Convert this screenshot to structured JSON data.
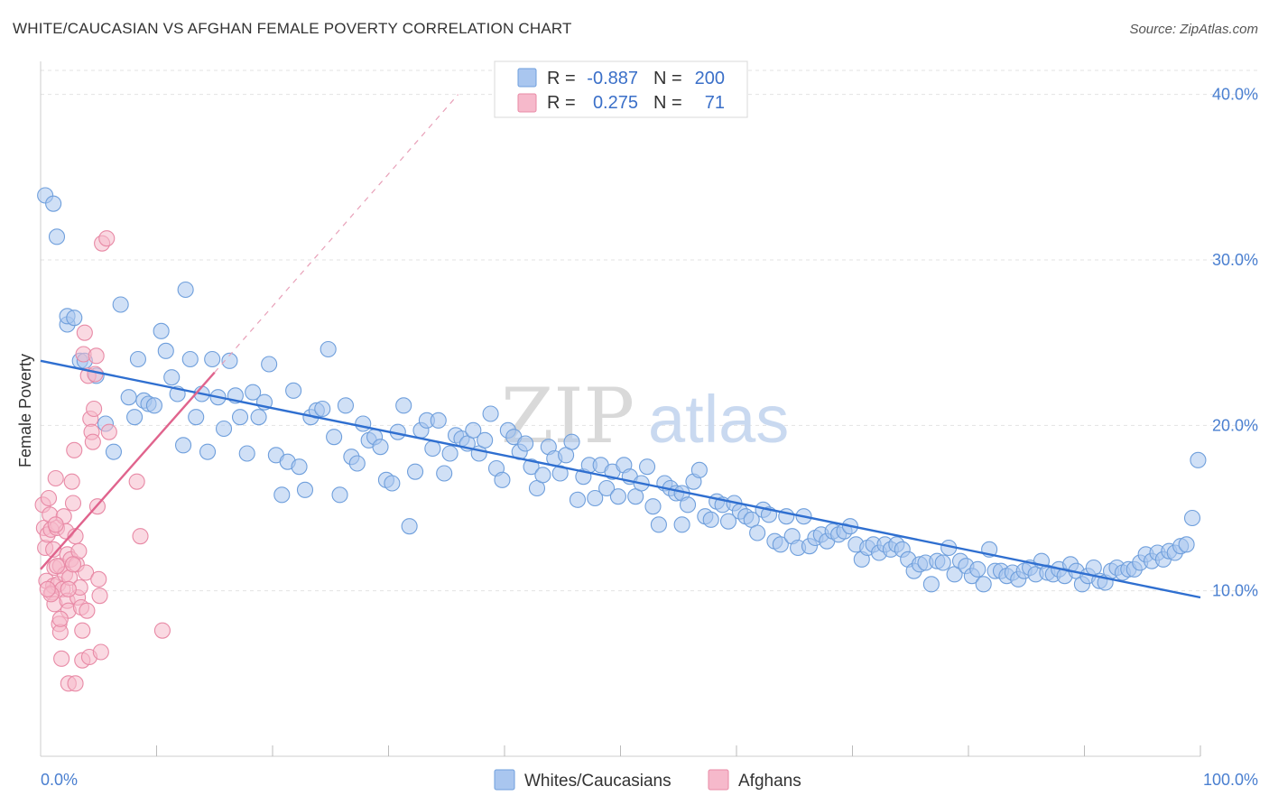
{
  "title": "WHITE/CAUCASIAN VS AFGHAN FEMALE POVERTY CORRELATION CHART",
  "source": "Source: ZipAtlas.com",
  "watermark": {
    "zip": "ZIP",
    "atlas": "atlas"
  },
  "legend": {
    "r_label": "R =",
    "n_label": "N =",
    "rows": [
      {
        "r": "-0.887",
        "n": "200",
        "color": "#a9c6ef",
        "edge": "#6f9fdc"
      },
      {
        "r": "0.275",
        "n": "71",
        "color": "#f6b9cb",
        "edge": "#e88aa6"
      }
    ]
  },
  "chart_data": {
    "type": "scatter",
    "title": "WHITE/CAUCASIAN VS AFGHAN FEMALE POVERTY CORRELATION CHART",
    "xlabel": "",
    "ylabel": "Female Poverty",
    "xlim": [
      0,
      100
    ],
    "ylim": [
      0,
      42
    ],
    "x_tick_labels": [
      "0.0%",
      "100.0%"
    ],
    "y_ticks": [
      10,
      20,
      30,
      40
    ],
    "y_tick_labels": [
      "10.0%",
      "20.0%",
      "30.0%",
      "40.0%"
    ],
    "grid": true,
    "legend_position": "top-center",
    "series": [
      {
        "name": "Whites/Caucasians",
        "color": "#6f9fdc",
        "fill": "#a9c6ef",
        "r": -0.887,
        "n": 200,
        "trend": {
          "x": [
            0,
            100
          ],
          "y": [
            23.9,
            9.6
          ]
        },
        "points": [
          [
            0.4,
            33.9
          ],
          [
            1.1,
            33.4
          ],
          [
            1.4,
            31.4
          ],
          [
            2.3,
            26.1
          ],
          [
            2.3,
            26.6
          ],
          [
            2.9,
            26.5
          ],
          [
            3.4,
            23.9
          ],
          [
            3.8,
            23.9
          ],
          [
            4.8,
            23.0
          ],
          [
            5.6,
            20.1
          ],
          [
            6.3,
            18.4
          ],
          [
            6.9,
            27.3
          ],
          [
            7.6,
            21.7
          ],
          [
            8.1,
            20.5
          ],
          [
            8.4,
            24.0
          ],
          [
            8.9,
            21.5
          ],
          [
            9.3,
            21.3
          ],
          [
            9.8,
            21.2
          ],
          [
            10.4,
            25.7
          ],
          [
            10.8,
            24.5
          ],
          [
            11.3,
            22.9
          ],
          [
            11.8,
            21.9
          ],
          [
            12.3,
            18.8
          ],
          [
            12.5,
            28.2
          ],
          [
            12.9,
            24.0
          ],
          [
            13.4,
            20.5
          ],
          [
            13.9,
            21.9
          ],
          [
            14.4,
            18.4
          ],
          [
            14.8,
            24.0
          ],
          [
            15.3,
            21.7
          ],
          [
            15.8,
            19.8
          ],
          [
            16.3,
            23.9
          ],
          [
            16.8,
            21.8
          ],
          [
            17.2,
            20.5
          ],
          [
            17.8,
            18.3
          ],
          [
            18.3,
            22.0
          ],
          [
            18.8,
            20.5
          ],
          [
            19.3,
            21.4
          ],
          [
            19.7,
            23.7
          ],
          [
            20.3,
            18.2
          ],
          [
            20.8,
            15.8
          ],
          [
            21.3,
            17.8
          ],
          [
            21.8,
            22.1
          ],
          [
            22.3,
            17.5
          ],
          [
            22.8,
            16.1
          ],
          [
            23.3,
            20.5
          ],
          [
            23.8,
            20.9
          ],
          [
            24.3,
            21.0
          ],
          [
            24.8,
            24.6
          ],
          [
            25.3,
            19.3
          ],
          [
            25.8,
            15.8
          ],
          [
            26.3,
            21.2
          ],
          [
            26.8,
            18.1
          ],
          [
            27.3,
            17.7
          ],
          [
            27.8,
            20.1
          ],
          [
            28.3,
            19.1
          ],
          [
            28.8,
            19.3
          ],
          [
            29.3,
            18.7
          ],
          [
            29.8,
            16.7
          ],
          [
            30.3,
            16.5
          ],
          [
            30.8,
            19.6
          ],
          [
            31.3,
            21.2
          ],
          [
            31.8,
            13.9
          ],
          [
            32.3,
            17.2
          ],
          [
            32.8,
            19.7
          ],
          [
            33.3,
            20.3
          ],
          [
            33.8,
            18.6
          ],
          [
            34.3,
            20.3
          ],
          [
            34.8,
            17.1
          ],
          [
            35.3,
            18.3
          ],
          [
            35.8,
            19.4
          ],
          [
            36.3,
            19.2
          ],
          [
            36.8,
            18.9
          ],
          [
            37.3,
            19.7
          ],
          [
            37.8,
            18.3
          ],
          [
            38.3,
            19.1
          ],
          [
            38.8,
            20.7
          ],
          [
            39.3,
            17.4
          ],
          [
            39.8,
            16.7
          ],
          [
            40.3,
            19.7
          ],
          [
            40.8,
            19.3
          ],
          [
            41.3,
            18.4
          ],
          [
            41.8,
            18.9
          ],
          [
            42.3,
            17.5
          ],
          [
            42.8,
            16.2
          ],
          [
            43.3,
            17.0
          ],
          [
            43.8,
            18.7
          ],
          [
            44.3,
            18.0
          ],
          [
            44.8,
            17.1
          ],
          [
            45.3,
            18.2
          ],
          [
            45.8,
            19.0
          ],
          [
            46.3,
            15.5
          ],
          [
            46.8,
            16.9
          ],
          [
            47.3,
            17.6
          ],
          [
            47.8,
            15.6
          ],
          [
            48.3,
            17.6
          ],
          [
            48.8,
            16.2
          ],
          [
            49.3,
            17.2
          ],
          [
            49.8,
            15.7
          ],
          [
            50.3,
            17.6
          ],
          [
            50.8,
            16.9
          ],
          [
            51.3,
            15.7
          ],
          [
            51.8,
            16.5
          ],
          [
            52.3,
            17.5
          ],
          [
            52.8,
            15.1
          ],
          [
            53.3,
            14.0
          ],
          [
            53.8,
            16.5
          ],
          [
            54.3,
            16.2
          ],
          [
            54.8,
            15.9
          ],
          [
            55.3,
            15.9
          ],
          [
            55.8,
            15.2
          ],
          [
            56.3,
            16.6
          ],
          [
            56.8,
            17.3
          ],
          [
            57.3,
            14.5
          ],
          [
            57.8,
            14.3
          ],
          [
            58.3,
            15.4
          ],
          [
            58.8,
            15.2
          ],
          [
            59.3,
            14.2
          ],
          [
            59.8,
            15.3
          ],
          [
            60.3,
            14.8
          ],
          [
            60.8,
            14.5
          ],
          [
            61.3,
            14.3
          ],
          [
            61.8,
            13.5
          ],
          [
            62.3,
            14.9
          ],
          [
            62.8,
            14.6
          ],
          [
            63.3,
            13.0
          ],
          [
            63.8,
            12.8
          ],
          [
            64.3,
            14.5
          ],
          [
            64.8,
            13.3
          ],
          [
            65.3,
            12.6
          ],
          [
            65.8,
            14.5
          ],
          [
            66.3,
            12.7
          ],
          [
            66.8,
            13.2
          ],
          [
            67.3,
            13.4
          ],
          [
            67.8,
            13.0
          ],
          [
            68.3,
            13.6
          ],
          [
            68.8,
            13.4
          ],
          [
            69.3,
            13.6
          ],
          [
            69.8,
            13.9
          ],
          [
            70.3,
            12.8
          ],
          [
            70.8,
            11.9
          ],
          [
            71.3,
            12.6
          ],
          [
            71.8,
            12.8
          ],
          [
            72.3,
            12.3
          ],
          [
            72.8,
            12.8
          ],
          [
            73.3,
            12.5
          ],
          [
            73.8,
            12.8
          ],
          [
            74.3,
            12.5
          ],
          [
            74.8,
            11.9
          ],
          [
            75.3,
            11.2
          ],
          [
            75.8,
            11.6
          ],
          [
            76.3,
            11.7
          ],
          [
            76.8,
            10.4
          ],
          [
            77.3,
            11.8
          ],
          [
            77.8,
            11.7
          ],
          [
            78.3,
            12.6
          ],
          [
            78.8,
            11.0
          ],
          [
            79.3,
            11.8
          ],
          [
            79.8,
            11.5
          ],
          [
            80.3,
            10.9
          ],
          [
            80.8,
            11.3
          ],
          [
            81.3,
            10.4
          ],
          [
            81.8,
            12.5
          ],
          [
            82.3,
            11.2
          ],
          [
            82.8,
            11.2
          ],
          [
            83.3,
            10.9
          ],
          [
            83.8,
            11.1
          ],
          [
            84.3,
            10.7
          ],
          [
            84.8,
            11.2
          ],
          [
            85.3,
            11.4
          ],
          [
            85.8,
            11.0
          ],
          [
            86.3,
            11.8
          ],
          [
            86.8,
            11.1
          ],
          [
            87.3,
            11.0
          ],
          [
            87.8,
            11.3
          ],
          [
            88.3,
            10.9
          ],
          [
            88.8,
            11.6
          ],
          [
            89.3,
            11.2
          ],
          [
            89.8,
            10.4
          ],
          [
            90.3,
            10.9
          ],
          [
            90.8,
            11.4
          ],
          [
            91.3,
            10.6
          ],
          [
            91.8,
            10.5
          ],
          [
            92.3,
            11.2
          ],
          [
            92.8,
            11.4
          ],
          [
            93.3,
            11.1
          ],
          [
            93.8,
            11.3
          ],
          [
            94.3,
            11.3
          ],
          [
            94.8,
            11.7
          ],
          [
            95.3,
            12.2
          ],
          [
            95.8,
            11.8
          ],
          [
            96.3,
            12.3
          ],
          [
            96.8,
            11.9
          ],
          [
            97.3,
            12.4
          ],
          [
            97.8,
            12.3
          ],
          [
            98.3,
            12.7
          ],
          [
            98.8,
            12.8
          ],
          [
            99.3,
            14.4
          ],
          [
            99.8,
            17.9
          ],
          [
            55.3,
            14.0
          ]
        ]
      },
      {
        "name": "Afghans",
        "color": "#e88aa6",
        "fill": "#f6b9cb",
        "r": 0.275,
        "n": 71,
        "trend": {
          "x": [
            0,
            15
          ],
          "y": [
            11.3,
            23.2
          ]
        },
        "trend_extended": {
          "x": [
            15,
            36
          ],
          "y": [
            23.2,
            40.0
          ]
        },
        "points": [
          [
            0.2,
            15.2
          ],
          [
            0.3,
            13.8
          ],
          [
            0.4,
            12.6
          ],
          [
            0.5,
            10.6
          ],
          [
            0.6,
            13.4
          ],
          [
            0.7,
            15.6
          ],
          [
            0.8,
            14.6
          ],
          [
            0.9,
            13.7
          ],
          [
            1.0,
            9.9
          ],
          [
            1.1,
            12.5
          ],
          [
            1.1,
            10.3
          ],
          [
            1.2,
            11.4
          ],
          [
            1.2,
            9.2
          ],
          [
            1.3,
            16.8
          ],
          [
            1.4,
            13.8
          ],
          [
            1.5,
            10.4
          ],
          [
            1.6,
            8.0
          ],
          [
            1.7,
            11.5
          ],
          [
            1.7,
            7.5
          ],
          [
            1.8,
            5.9
          ],
          [
            1.9,
            10.1
          ],
          [
            2.0,
            14.5
          ],
          [
            2.1,
            11.0
          ],
          [
            2.2,
            13.6
          ],
          [
            2.3,
            9.4
          ],
          [
            2.3,
            12.2
          ],
          [
            2.4,
            8.8
          ],
          [
            2.5,
            10.8
          ],
          [
            2.6,
            11.9
          ],
          [
            2.7,
            16.6
          ],
          [
            2.8,
            15.3
          ],
          [
            2.9,
            18.5
          ],
          [
            3.0,
            13.3
          ],
          [
            3.1,
            11.6
          ],
          [
            3.2,
            9.6
          ],
          [
            3.3,
            12.4
          ],
          [
            3.4,
            10.2
          ],
          [
            3.5,
            9.0
          ],
          [
            3.6,
            5.8
          ],
          [
            3.7,
            24.3
          ],
          [
            3.8,
            25.6
          ],
          [
            3.9,
            11.1
          ],
          [
            4.0,
            8.8
          ],
          [
            4.1,
            23.0
          ],
          [
            4.2,
            6.0
          ],
          [
            4.3,
            20.4
          ],
          [
            4.4,
            19.6
          ],
          [
            4.5,
            19.0
          ],
          [
            4.6,
            21.0
          ],
          [
            4.7,
            23.1
          ],
          [
            4.8,
            24.2
          ],
          [
            4.9,
            15.1
          ],
          [
            5.0,
            10.7
          ],
          [
            5.1,
            9.7
          ],
          [
            5.2,
            6.3
          ],
          [
            5.3,
            31.0
          ],
          [
            5.7,
            31.3
          ],
          [
            5.9,
            19.6
          ],
          [
            8.3,
            16.6
          ],
          [
            8.6,
            13.3
          ],
          [
            10.5,
            7.6
          ],
          [
            2.4,
            4.4
          ],
          [
            3.0,
            4.4
          ],
          [
            1.4,
            11.5
          ],
          [
            0.9,
            9.8
          ],
          [
            2.8,
            11.6
          ],
          [
            0.6,
            10.1
          ],
          [
            1.7,
            8.3
          ],
          [
            2.4,
            10.1
          ],
          [
            3.6,
            7.6
          ],
          [
            1.3,
            14.0
          ]
        ]
      }
    ]
  }
}
